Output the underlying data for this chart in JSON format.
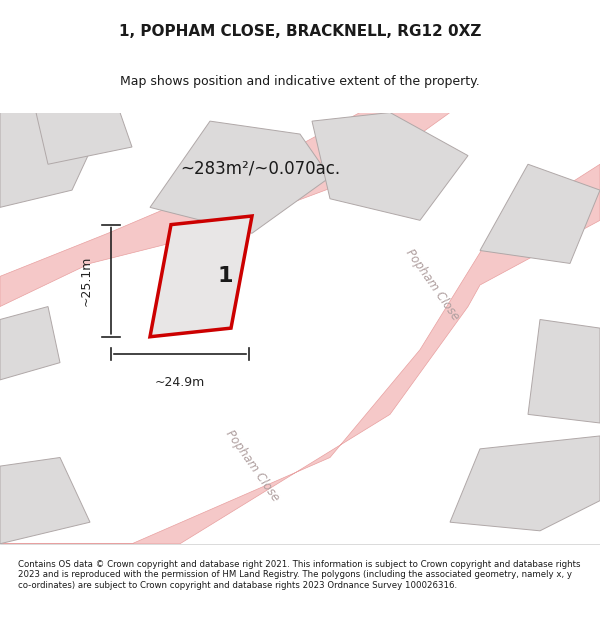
{
  "title": "1, POPHAM CLOSE, BRACKNELL, RG12 0XZ",
  "subtitle": "Map shows position and indicative extent of the property.",
  "area_label": "~283m²/~0.070ac.",
  "plot_number": "1",
  "dim_width": "~24.9m",
  "dim_height": "~25.1m",
  "road_label_1": "Popham Close",
  "road_label_2": "Popham Close",
  "copyright_text": "Contains OS data © Crown copyright and database right 2021. This information is subject to Crown copyright and database rights 2023 and is reproduced with the permission of HM Land Registry. The polygons (including the associated geometry, namely x, y co-ordinates) are subject to Crown copyright and database rights 2023 Ordnance Survey 100026316.",
  "bg_color": "#f0eeee",
  "map_bg": "#f5f3f3",
  "plot_fill": "#e8e6e6",
  "plot_edge_color": "#cc0000",
  "road_color": "#f5c8c8",
  "road_stroke": "#e8a0a0",
  "building_fill": "#dcdada",
  "building_edge": "#b0a8a8",
  "dim_line_color": "#222222",
  "text_color": "#1a1a1a"
}
